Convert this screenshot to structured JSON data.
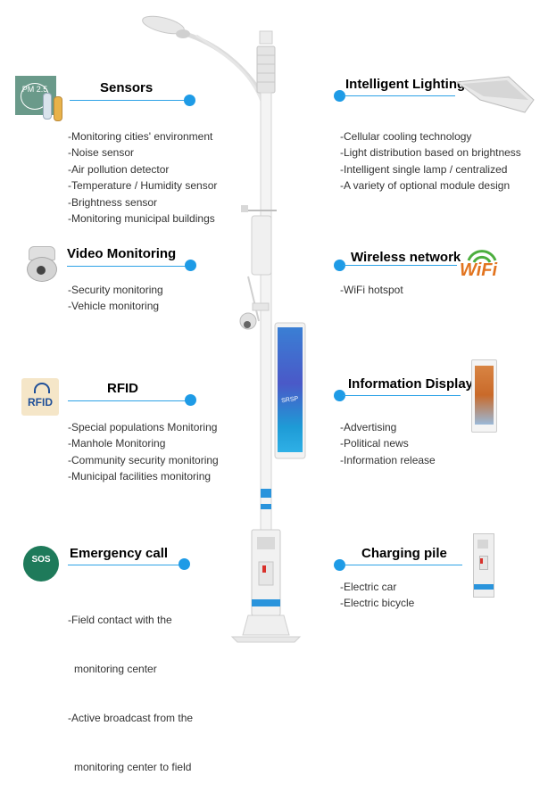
{
  "sections": {
    "sensors": {
      "title": "Sensors",
      "items": [
        "-Monitoring cities' environment",
        "-Noise sensor",
        "-Air pollution detector",
        "-Temperature / Humidity sensor",
        "-Brightness sensor",
        "-Monitoring municipal buildings"
      ],
      "icon_label": "PM 2.5"
    },
    "video": {
      "title": "Video Monitoring",
      "items": [
        "-Security monitoring",
        "-Vehicle monitoring"
      ]
    },
    "rfid": {
      "title": "RFID",
      "items": [
        "-Special populations Monitoring",
        "-Manhole Monitoring",
        "-Community security monitoring",
        "-Municipal facilities monitoring"
      ],
      "icon_label": "RFID"
    },
    "emergency": {
      "title": "Emergency call",
      "items": [
        "-Field contact with the",
        "  monitoring center",
        "-Active broadcast from the",
        "  monitoring center to field"
      ],
      "icon_label": "SOS"
    },
    "lighting": {
      "title": "Intelligent Lighting",
      "items": [
        "-Cellular cooling technology",
        "-Light distribution based on brightness",
        "-Intelligent single lamp / centralized",
        "-A variety of optional module design"
      ]
    },
    "wireless": {
      "title": "Wireless network",
      "items": [
        "-WiFi hotspot"
      ],
      "icon_label": "WiFi"
    },
    "display": {
      "title": "Information Display",
      "items": [
        "-Advertising",
        "-Political news",
        "-Information release"
      ]
    },
    "charging": {
      "title": "Charging pile",
      "items": [
        "-Electric car",
        "-Electric bicycle"
      ]
    }
  },
  "colors": {
    "accent": "#1e9be6",
    "pole": "#f2f2f2",
    "band": "#2a94dc"
  }
}
